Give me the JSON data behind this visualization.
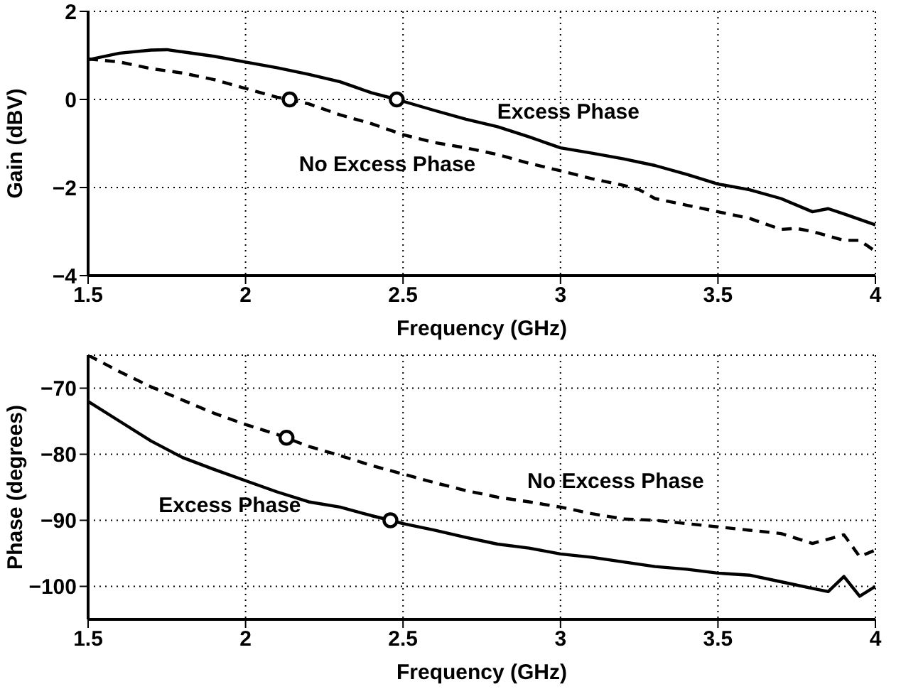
{
  "chart_data": [
    {
      "type": "line",
      "xlabel": "Frequency (GHz)",
      "ylabel": "Gain (dBV)",
      "xlim": [
        1.5,
        4
      ],
      "xticks": [
        1.5,
        2,
        2.5,
        3,
        3.5,
        4
      ],
      "ylim": [
        -4,
        2
      ],
      "yticks": [
        -4,
        -2,
        0,
        2
      ],
      "grid": true,
      "series": [
        {
          "color": "#000000",
          "line_style": "solid",
          "marker": "none",
          "x": [
            1.5,
            1.6,
            1.7,
            1.75,
            1.8,
            1.9,
            2.0,
            2.1,
            2.2,
            2.3,
            2.4,
            2.48,
            2.6,
            2.7,
            2.8,
            2.9,
            3.0,
            3.1,
            3.2,
            3.3,
            3.4,
            3.5,
            3.6,
            3.7,
            3.8,
            3.85,
            3.9,
            4.0
          ],
          "values": [
            0.9,
            1.05,
            1.12,
            1.13,
            1.08,
            0.98,
            0.85,
            0.72,
            0.57,
            0.4,
            0.15,
            0.0,
            -0.25,
            -0.45,
            -0.62,
            -0.85,
            -1.1,
            -1.22,
            -1.35,
            -1.5,
            -1.7,
            -1.92,
            -2.05,
            -2.25,
            -2.55,
            -2.48,
            -2.6,
            -2.85
          ]
        },
        {
          "color": "#000000",
          "line_style": "dashed",
          "marker": "none",
          "x": [
            1.5,
            1.6,
            1.7,
            1.8,
            1.9,
            2.0,
            2.1,
            2.14,
            2.2,
            2.3,
            2.4,
            2.5,
            2.6,
            2.7,
            2.8,
            2.9,
            3.0,
            3.1,
            3.2,
            3.25,
            3.3,
            3.4,
            3.5,
            3.6,
            3.7,
            3.75,
            3.8,
            3.9,
            3.95,
            4.0
          ],
          "values": [
            0.92,
            0.85,
            0.7,
            0.6,
            0.45,
            0.25,
            0.05,
            0.0,
            -0.1,
            -0.35,
            -0.55,
            -0.8,
            -0.98,
            -1.1,
            -1.25,
            -1.45,
            -1.62,
            -1.8,
            -1.95,
            -2.05,
            -2.25,
            -2.4,
            -2.55,
            -2.7,
            -2.95,
            -2.93,
            -3.0,
            -3.2,
            -3.2,
            -3.45
          ]
        },
        {
          "type": "scatter",
          "color": "#000000",
          "marker": "circle",
          "x": [
            2.14,
            2.48
          ],
          "values": [
            0,
            0
          ]
        }
      ],
      "annotations": [
        "Excess Phase",
        "No Excess Phase"
      ]
    },
    {
      "type": "line",
      "xlabel": "Frequency (GHz)",
      "ylabel": "Phase (degrees)",
      "xlim": [
        1.5,
        4
      ],
      "xticks": [
        1.5,
        2,
        2.5,
        3,
        3.5,
        4
      ],
      "ylim": [
        -105,
        -65
      ],
      "yticks": [
        -100,
        -90,
        -80,
        -70
      ],
      "grid": true,
      "series": [
        {
          "color": "#000000",
          "line_style": "solid",
          "marker": "none",
          "x": [
            1.5,
            1.6,
            1.7,
            1.8,
            1.9,
            2.0,
            2.1,
            2.2,
            2.3,
            2.4,
            2.46,
            2.5,
            2.6,
            2.7,
            2.8,
            2.9,
            3.0,
            3.1,
            3.2,
            3.3,
            3.4,
            3.5,
            3.6,
            3.7,
            3.8,
            3.85,
            3.9,
            3.95,
            4.0
          ],
          "values": [
            -72,
            -75,
            -78,
            -80.5,
            -82.3,
            -84,
            -85.7,
            -87.2,
            -88,
            -89.3,
            -90,
            -90.5,
            -91.5,
            -92.6,
            -93.6,
            -94.2,
            -95.1,
            -95.6,
            -96.3,
            -97,
            -97.4,
            -98,
            -98.3,
            -99.3,
            -100.3,
            -100.8,
            -98.5,
            -101.5,
            -100
          ]
        },
        {
          "color": "#000000",
          "line_style": "dashed",
          "marker": "none",
          "x": [
            1.5,
            1.6,
            1.7,
            1.8,
            1.9,
            2.0,
            2.1,
            2.2,
            2.3,
            2.4,
            2.5,
            2.6,
            2.7,
            2.8,
            2.9,
            3.0,
            3.1,
            3.2,
            3.3,
            3.4,
            3.5,
            3.6,
            3.7,
            3.8,
            3.9,
            3.95,
            4.0
          ],
          "values": [
            -65,
            -67.5,
            -69.8,
            -71.8,
            -73.8,
            -75.5,
            -77,
            -78.8,
            -80.2,
            -81.7,
            -83,
            -84.3,
            -85.5,
            -86.5,
            -87.2,
            -88,
            -89,
            -89.8,
            -90,
            -90.5,
            -91,
            -91.5,
            -92,
            -93.5,
            -92.2,
            -95.5,
            -94.5
          ]
        },
        {
          "type": "scatter",
          "color": "#000000",
          "marker": "circle",
          "x": [
            2.13,
            2.46
          ],
          "values": [
            -77.5,
            -90
          ]
        }
      ],
      "annotations": [
        "Excess Phase",
        "No Excess Phase"
      ]
    }
  ]
}
